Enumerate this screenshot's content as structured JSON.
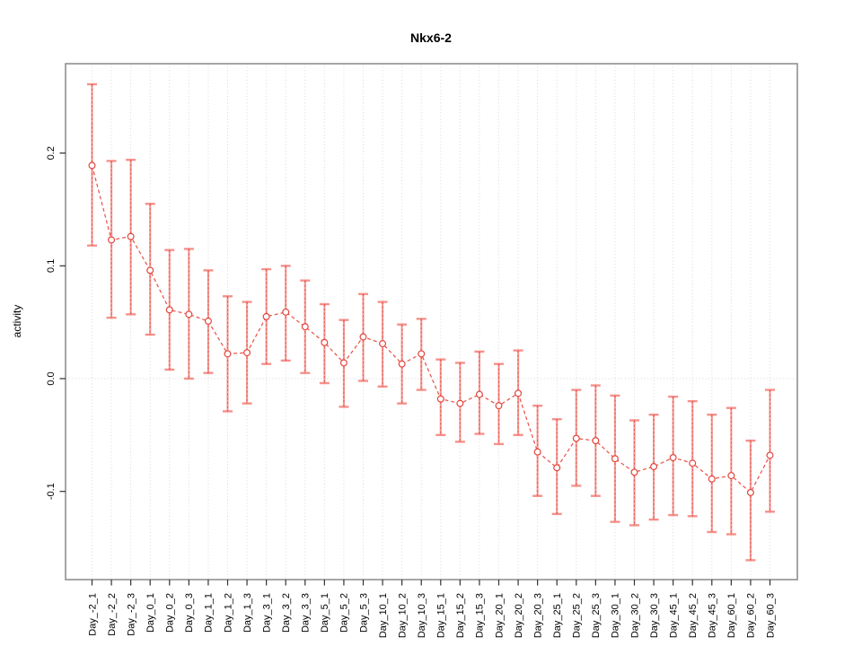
{
  "chart_data": {
    "type": "line",
    "subtype": "points-with-error-bars",
    "title": "Nkx6-2",
    "ylabel": "activity",
    "xlabel": "",
    "yticks": [
      0.2,
      0.1,
      0.0,
      -0.1
    ],
    "ylim": [
      -0.175,
      0.28
    ],
    "grid": {
      "vertical_dotted_per_category": true,
      "zero_line_dotted": true,
      "horizontal_lines": false
    },
    "legend": "none",
    "marker": "open-circle",
    "line_style": "dashed",
    "categories": [
      "Day_-2_1",
      "Day_-2_2",
      "Day_-2_3",
      "Day_0_1",
      "Day_0_2",
      "Day_0_3",
      "Day_1_1",
      "Day_1_2",
      "Day_1_3",
      "Day_3_1",
      "Day_3_2",
      "Day_3_3",
      "Day_5_1",
      "Day_5_2",
      "Day_5_3",
      "Day_10_1",
      "Day_10_2",
      "Day_10_3",
      "Day_15_1",
      "Day_15_2",
      "Day_15_3",
      "Day_20_1",
      "Day_20_2",
      "Day_20_3",
      "Day_25_1",
      "Day_25_2",
      "Day_25_3",
      "Day_30_1",
      "Day_30_2",
      "Day_30_3",
      "Day_45_1",
      "Day_45_2",
      "Day_45_3",
      "Day_60_1",
      "Day_60_2",
      "Day_60_3"
    ],
    "series": [
      {
        "name": "activity",
        "center": [
          0.189,
          0.123,
          0.126,
          0.096,
          0.061,
          0.057,
          0.051,
          0.022,
          0.023,
          0.055,
          0.059,
          0.046,
          0.032,
          0.014,
          0.037,
          0.031,
          0.013,
          0.022,
          -0.018,
          -0.022,
          -0.014,
          -0.024,
          -0.013,
          -0.065,
          -0.079,
          -0.053,
          -0.055,
          -0.071,
          -0.083,
          -0.078,
          -0.07,
          -0.075,
          -0.089,
          -0.086,
          -0.101,
          -0.068
        ],
        "lower": [
          0.118,
          0.054,
          0.057,
          0.039,
          0.008,
          0.0,
          0.005,
          -0.029,
          -0.022,
          0.013,
          0.016,
          0.005,
          -0.004,
          -0.025,
          -0.002,
          -0.007,
          -0.022,
          -0.01,
          -0.05,
          -0.056,
          -0.049,
          -0.058,
          -0.05,
          -0.104,
          -0.12,
          -0.095,
          -0.104,
          -0.127,
          -0.13,
          -0.125,
          -0.121,
          -0.122,
          -0.136,
          -0.138,
          -0.161,
          -0.118
        ],
        "upper": [
          0.261,
          0.193,
          0.194,
          0.155,
          0.114,
          0.115,
          0.096,
          0.073,
          0.068,
          0.097,
          0.1,
          0.087,
          0.066,
          0.052,
          0.075,
          0.068,
          0.048,
          0.053,
          0.017,
          0.014,
          0.024,
          0.013,
          0.025,
          -0.024,
          -0.036,
          -0.01,
          -0.006,
          -0.015,
          -0.037,
          -0.032,
          -0.016,
          -0.02,
          -0.032,
          -0.026,
          -0.055,
          -0.01
        ]
      }
    ],
    "colors": {
      "series_line": "#ea4f46",
      "marker_stroke": "#e4453c",
      "marker_fill": "#ffffff",
      "error_bar": "#f26e66",
      "error_bar_dash_overlay": "#e04a42",
      "grid": "#d9d9d9",
      "zero_line": "#d4d4d4",
      "box": "#8f8f8f",
      "tick": "#303030",
      "text": "#000000"
    }
  }
}
